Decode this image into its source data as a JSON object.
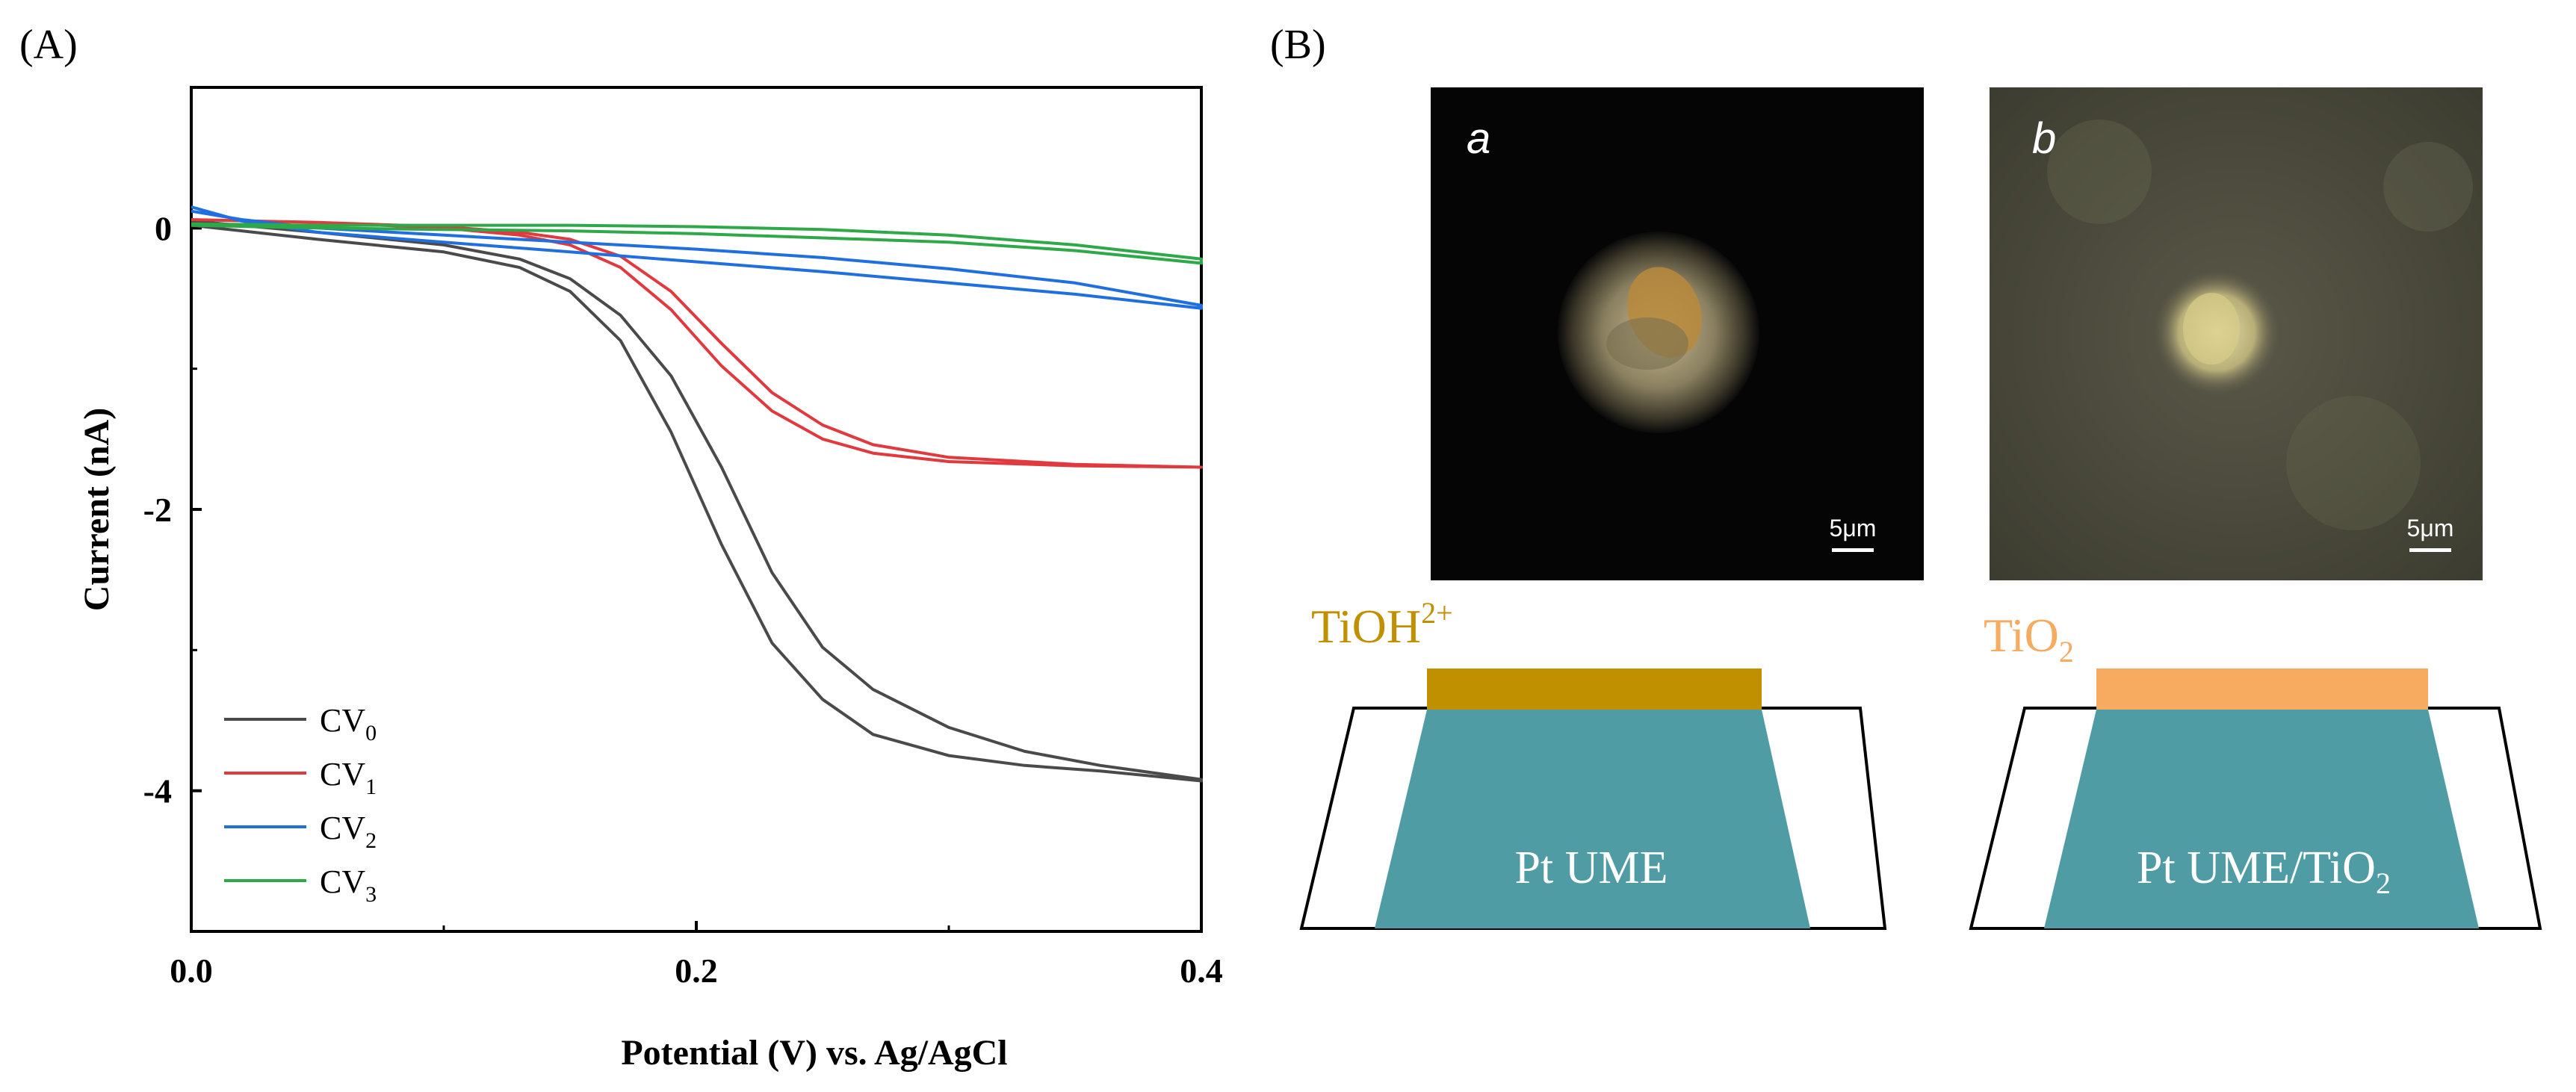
{
  "panels": {
    "a_label": "(A)",
    "b_label": "(B)"
  },
  "chart_data": {
    "type": "line",
    "title": "",
    "xlabel": "Potential (V) vs. Ag/AgCl",
    "ylabel": "Current (nA)",
    "xlim": [
      0.0,
      0.4
    ],
    "ylim": [
      -5,
      1
    ],
    "x_ticks": [
      0.0,
      0.2,
      0.4
    ],
    "x_tick_labels": [
      "0.0",
      "0.2",
      "0.4"
    ],
    "y_ticks": [
      0,
      -2,
      -4
    ],
    "y_tick_labels": [
      "0",
      "-2",
      "-4"
    ],
    "grid": false,
    "legend_position": "bottom-left",
    "series": [
      {
        "name": "CV",
        "sub": "0",
        "color": "#4a4a4a",
        "forward": [
          [
            0,
            0.02
          ],
          [
            0.05,
            -0.08
          ],
          [
            0.1,
            -0.17
          ],
          [
            0.13,
            -0.28
          ],
          [
            0.15,
            -0.45
          ],
          [
            0.17,
            -0.8
          ],
          [
            0.19,
            -1.45
          ],
          [
            0.21,
            -2.25
          ],
          [
            0.23,
            -2.95
          ],
          [
            0.25,
            -3.35
          ],
          [
            0.27,
            -3.6
          ],
          [
            0.3,
            -3.75
          ],
          [
            0.33,
            -3.82
          ],
          [
            0.36,
            -3.86
          ],
          [
            0.4,
            -3.93
          ]
        ],
        "reverse": [
          [
            0,
            0.05
          ],
          [
            0.05,
            -0.03
          ],
          [
            0.1,
            -0.12
          ],
          [
            0.13,
            -0.22
          ],
          [
            0.15,
            -0.36
          ],
          [
            0.17,
            -0.62
          ],
          [
            0.19,
            -1.05
          ],
          [
            0.21,
            -1.7
          ],
          [
            0.23,
            -2.45
          ],
          [
            0.25,
            -2.98
          ],
          [
            0.27,
            -3.28
          ],
          [
            0.3,
            -3.55
          ],
          [
            0.33,
            -3.72
          ],
          [
            0.36,
            -3.82
          ],
          [
            0.4,
            -3.92
          ]
        ]
      },
      {
        "name": "CV",
        "sub": "1",
        "color": "#e0393e",
        "forward": [
          [
            0,
            0.06
          ],
          [
            0.05,
            0.04
          ],
          [
            0.1,
            0.0
          ],
          [
            0.13,
            -0.05
          ],
          [
            0.15,
            -0.12
          ],
          [
            0.17,
            -0.28
          ],
          [
            0.19,
            -0.58
          ],
          [
            0.21,
            -0.98
          ],
          [
            0.23,
            -1.3
          ],
          [
            0.25,
            -1.5
          ],
          [
            0.27,
            -1.6
          ],
          [
            0.3,
            -1.66
          ],
          [
            0.35,
            -1.69
          ],
          [
            0.4,
            -1.7
          ]
        ],
        "reverse": [
          [
            0,
            0.06
          ],
          [
            0.05,
            0.04
          ],
          [
            0.1,
            0.01
          ],
          [
            0.13,
            -0.03
          ],
          [
            0.15,
            -0.08
          ],
          [
            0.17,
            -0.2
          ],
          [
            0.19,
            -0.45
          ],
          [
            0.21,
            -0.82
          ],
          [
            0.23,
            -1.17
          ],
          [
            0.25,
            -1.4
          ],
          [
            0.27,
            -1.54
          ],
          [
            0.3,
            -1.63
          ],
          [
            0.35,
            -1.68
          ],
          [
            0.4,
            -1.7
          ]
        ]
      },
      {
        "name": "CV",
        "sub": "2",
        "color": "#1f6fe0",
        "forward": [
          [
            0,
            0.15
          ],
          [
            0.02,
            0.05
          ],
          [
            0.05,
            -0.03
          ],
          [
            0.1,
            -0.1
          ],
          [
            0.15,
            -0.17
          ],
          [
            0.2,
            -0.24
          ],
          [
            0.25,
            -0.31
          ],
          [
            0.3,
            -0.39
          ],
          [
            0.35,
            -0.47
          ],
          [
            0.4,
            -0.57
          ]
        ],
        "reverse": [
          [
            0,
            0.12
          ],
          [
            0.02,
            0.06
          ],
          [
            0.05,
            0.0
          ],
          [
            0.1,
            -0.05
          ],
          [
            0.15,
            -0.1
          ],
          [
            0.2,
            -0.15
          ],
          [
            0.25,
            -0.21
          ],
          [
            0.3,
            -0.29
          ],
          [
            0.35,
            -0.39
          ],
          [
            0.4,
            -0.55
          ]
        ]
      },
      {
        "name": "CV",
        "sub": "3",
        "color": "#2fa84a",
        "forward": [
          [
            0,
            0.02
          ],
          [
            0.05,
            0.0
          ],
          [
            0.1,
            -0.01
          ],
          [
            0.15,
            -0.02
          ],
          [
            0.2,
            -0.04
          ],
          [
            0.25,
            -0.07
          ],
          [
            0.3,
            -0.1
          ],
          [
            0.35,
            -0.16
          ],
          [
            0.4,
            -0.25
          ]
        ],
        "reverse": [
          [
            0,
            0.03
          ],
          [
            0.05,
            0.02
          ],
          [
            0.1,
            0.02
          ],
          [
            0.15,
            0.02
          ],
          [
            0.2,
            0.01
          ],
          [
            0.25,
            -0.01
          ],
          [
            0.3,
            -0.05
          ],
          [
            0.35,
            -0.12
          ],
          [
            0.4,
            -0.22
          ]
        ]
      }
    ]
  },
  "micrographs": [
    {
      "label": "a",
      "scale": "5μm"
    },
    {
      "label": "b",
      "scale": "5μm"
    }
  ],
  "schematics": [
    {
      "film_label": "TiOH",
      "film_sup": "2+",
      "film_color": "#c09000",
      "electrode_label": "Pt UME",
      "electrode_color": "#4f9ca5"
    },
    {
      "film_label": "TiO",
      "film_sub": "2",
      "film_color": "#f6ab60",
      "electrode_label": "Pt UME/TiO",
      "electrode_sub": "2",
      "electrode_color": "#4f9ca5"
    }
  ]
}
